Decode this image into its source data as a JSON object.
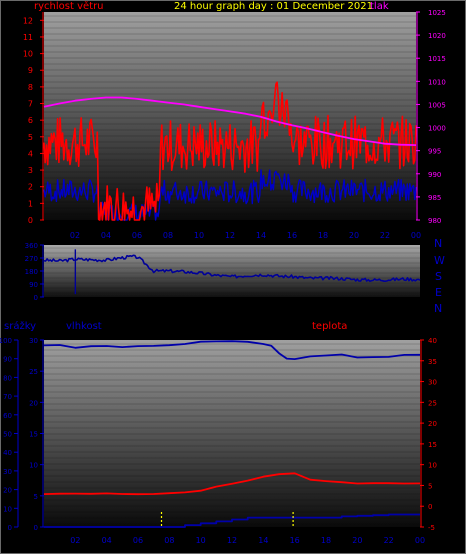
{
  "colors": {
    "wind": "#ff0000",
    "gust": "#0000c8",
    "pressure": "#ff00ff",
    "direction": "#000099",
    "humidity": "#0000aa",
    "temperature": "#ff0000",
    "rain": "#0000aa",
    "title": "#ffff00",
    "axis_red": "#ff0000",
    "axis_magenta": "#ff00ff",
    "axis_blue": "#0000cc"
  },
  "header": {
    "title": "24 hour graph day : 01 December 2021",
    "wind_label": "rychlost větru",
    "pressure_label": "tlak"
  },
  "compass": [
    "N",
    "W",
    "S",
    "E",
    "N"
  ],
  "lower_labels": {
    "rain": "srážky",
    "humidity": "vlhkost",
    "temperature": "teplota"
  },
  "chart_data": [
    {
      "type": "line",
      "title": "24 hour graph day : 01 December 2021",
      "x_ticks": [
        "02",
        "04",
        "06",
        "08",
        "10",
        "12",
        "14",
        "16",
        "18",
        "20",
        "22",
        "00"
      ],
      "left_axis": {
        "label": "rychlost větru",
        "ticks": [
          0,
          1,
          2,
          3,
          4,
          5,
          6,
          7,
          8,
          9,
          10,
          11,
          12
        ],
        "ylim": [
          0,
          12.5
        ]
      },
      "right_axis": {
        "label": "tlak",
        "ticks": [
          980,
          985,
          990,
          995,
          1000,
          1005,
          1010,
          1015,
          1020,
          1025
        ],
        "ylim": [
          980,
          1025
        ]
      },
      "series": [
        {
          "name": "tlak",
          "axis": "right",
          "x": [
            0,
            1,
            2,
            3,
            4,
            5,
            6,
            7,
            8,
            9,
            10,
            11,
            12,
            13,
            14,
            15,
            16,
            17,
            18,
            19,
            20,
            21,
            22,
            23,
            24
          ],
          "values": [
            1004.5,
            1005.2,
            1005.8,
            1006.2,
            1006.5,
            1006.5,
            1006.2,
            1005.8,
            1005.4,
            1005.0,
            1004.5,
            1004.0,
            1003.5,
            1003.0,
            1002.3,
            1001.3,
            1000.5,
            999.8,
            999.0,
            998.2,
            997.5,
            997.0,
            996.5,
            996.3,
            996.2
          ]
        },
        {
          "axis": "left",
          "x": [
            0,
            24
          ],
          "values": [
            3.5,
            3.5
          ]
        },
        {
          "axis": "left",
          "x": [
            0,
            24
          ],
          "values": [
            1.2,
            1.2
          ]
        }
      ]
    },
    {
      "type": "line",
      "x_ticks": [
        "02",
        "04",
        "06",
        "08",
        "10",
        "12",
        "14",
        "16",
        "18",
        "20",
        "22",
        "00"
      ],
      "left_axis": {
        "ticks": [
          0,
          90,
          180,
          270,
          360
        ],
        "ylim": [
          0,
          360
        ]
      },
      "series": [
        {
          "axis": "left",
          "x": [
            0,
            1,
            2,
            3,
            4,
            4.8,
            5.2,
            5.6,
            6,
            7,
            8,
            9,
            10,
            11,
            12,
            13,
            14,
            15,
            16,
            17,
            18,
            19,
            20,
            21,
            22,
            23,
            24
          ],
          "values": [
            255,
            250,
            262,
            258,
            255,
            270,
            275,
            280,
            275,
            180,
            180,
            175,
            165,
            150,
            140,
            150,
            155,
            145,
            140,
            130,
            130,
            128,
            120,
            118,
            120,
            125,
            120
          ]
        }
      ]
    },
    {
      "type": "line",
      "x_ticks": [
        "02",
        "04",
        "06",
        "08",
        "10",
        "12",
        "14",
        "16",
        "18",
        "20",
        "22",
        "00"
      ],
      "left_axis": {
        "label": "srážky",
        "ticks": [
          0,
          10,
          20,
          30,
          40,
          50,
          60,
          70,
          80,
          90,
          100
        ],
        "ylim": [
          0,
          100
        ]
      },
      "humidity_axis": {
        "label": "vlhkost",
        "ticks": [
          0,
          5,
          10,
          15,
          20,
          25,
          30
        ],
        "ylim": [
          0,
          30
        ]
      },
      "right_axis": {
        "label": "teplota",
        "ticks": [
          -5,
          0,
          5,
          10,
          15,
          20,
          25,
          30,
          35,
          40
        ],
        "ylim": [
          -5,
          40
        ]
      },
      "series": [
        {
          "name": "vlhkost",
          "axis": "left",
          "x": [
            0,
            1,
            2,
            3,
            4,
            5,
            6,
            7,
            8,
            9,
            10,
            11,
            12,
            13,
            14,
            14.5,
            15,
            15.5,
            16,
            17,
            18,
            19,
            20,
            21,
            22,
            23,
            24
          ],
          "values": [
            97,
            97,
            96,
            97,
            97,
            96,
            97,
            97,
            97,
            98,
            99,
            99,
            99,
            99,
            98,
            97,
            93,
            90,
            90,
            91,
            92,
            92,
            91,
            91,
            91,
            92,
            92
          ]
        },
        {
          "name": "teplota",
          "axis": "right",
          "x": [
            0,
            1,
            2,
            3,
            4,
            5,
            6,
            7,
            8,
            9,
            10,
            11,
            12,
            13,
            14,
            15,
            16,
            17,
            18,
            19,
            20,
            21,
            22,
            23,
            24
          ],
          "values": [
            2.8,
            3.0,
            3.0,
            2.9,
            3.0,
            3.0,
            2.9,
            3.0,
            3.2,
            3.4,
            3.8,
            4.6,
            5.4,
            6.2,
            7.0,
            7.6,
            7.8,
            6.4,
            6.0,
            5.8,
            5.6,
            5.6,
            5.6,
            5.6,
            5.6
          ]
        },
        {
          "name": "srážky",
          "axis": "humidity",
          "x": [
            0,
            1,
            2,
            3,
            4,
            5,
            6,
            7,
            8,
            9,
            10,
            11,
            12,
            13,
            14,
            15,
            16,
            17,
            18,
            19,
            20,
            21,
            22,
            23,
            24
          ],
          "values": [
            0,
            0,
            0,
            0,
            0,
            0,
            0,
            0,
            0,
            0.3,
            0.6,
            0.9,
            1.2,
            1.5,
            1.5,
            1.5,
            1.5,
            1.5,
            1.5,
            1.7,
            1.8,
            1.9,
            2.0,
            2.0,
            2.0
          ]
        }
      ]
    }
  ]
}
